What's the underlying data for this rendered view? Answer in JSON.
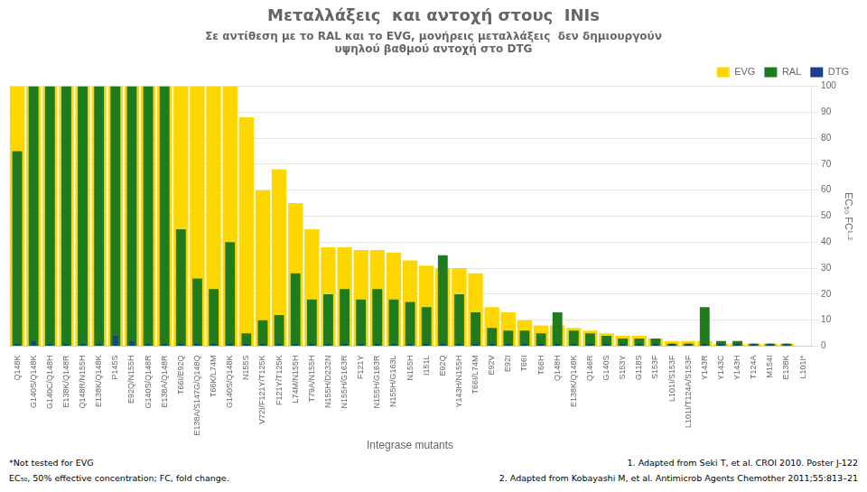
{
  "chart_data": {
    "type": "bar",
    "title": "Μεταλλάξεις  και αντοχή στους  INIs",
    "subtitle": [
      "Σε αντίθεση με το RAL και το EVG, μονήρεις μεταλλάξεις  δεν δημιουργούν",
      "υψηλού βαθμού αντοχή στο DTG"
    ],
    "x_label": "Integrase mutants",
    "y_label": "EC₅₀ FC¹·²",
    "categories": [
      "Q148K",
      "G140S/Q148K",
      "G140C/Q148H",
      "E138K/Q148R",
      "Q148R/N155H",
      "E138K/Q148K",
      "P145S",
      "E92Q/N155H",
      "G140S/Q148R",
      "E138A/Q148R",
      "T66I/E92Q",
      "E138A/S147G/Q148Q",
      "T66K/L74M",
      "G140S/Q148K",
      "N155S",
      "V72I/F121Y/T125K",
      "F121Y/T125K",
      "L74M/N155H",
      "T79A/N155H",
      "N155H/D232N",
      "N155H/G163R",
      "F121Y",
      "N155H/G163R",
      "N155H/G163L",
      "N155H",
      "I151L",
      "E92Q",
      "Y143H/N155H",
      "T66I/L74M",
      "E92V",
      "E92I",
      "T66I",
      "T66H",
      "Q148H",
      "E138K/Q148K",
      "Q146R",
      "G140S",
      "S153Y",
      "G118S",
      "S153F",
      "L101I/S153F",
      "L101I/T124A/S153F",
      "Y143R",
      "Y143C",
      "Y143H",
      "T124A",
      "M154I",
      "E138K",
      "L101I*"
    ],
    "series": [
      {
        "name": "EVG",
        "color": "#FFD700",
        "values": [
          100,
          100,
          100,
          100,
          100,
          100,
          100,
          100,
          100,
          100,
          100,
          100,
          100,
          100,
          88,
          60,
          68,
          55,
          45,
          38,
          38,
          37,
          37,
          36,
          33,
          31,
          30,
          30,
          28,
          15,
          13,
          10,
          8,
          8,
          7,
          6,
          5,
          4,
          4,
          3,
          2,
          2,
          2,
          1,
          1,
          1,
          1,
          1,
          0
        ]
      },
      {
        "name": "RAL",
        "color": "#1E7B1E",
        "values": [
          75,
          100,
          100,
          100,
          100,
          100,
          100,
          100,
          100,
          100,
          45,
          26,
          22,
          40,
          5,
          10,
          12,
          28,
          18,
          20,
          22,
          18,
          22,
          18,
          17,
          15,
          35,
          20,
          13,
          7,
          6,
          6,
          5,
          13,
          6,
          5,
          4,
          3,
          3,
          3,
          1,
          1,
          15,
          2,
          2,
          1,
          1,
          1,
          0
        ]
      },
      {
        "name": "DTG",
        "color": "#1C3F8F",
        "values": [
          1,
          2,
          1,
          1,
          1,
          1,
          4,
          2,
          1,
          1,
          1,
          1,
          1,
          1,
          1,
          1,
          1,
          1,
          1,
          1,
          1,
          1,
          1,
          1,
          1,
          1,
          1,
          1,
          1,
          1,
          1,
          1,
          1,
          1,
          1,
          1,
          1,
          1,
          1,
          1,
          1,
          1,
          1,
          1,
          1,
          1,
          1,
          1,
          0
        ]
      }
    ],
    "ylim": [
      0,
      100
    ],
    "yticks": [
      0,
      10,
      20,
      30,
      40,
      50,
      60,
      70,
      80,
      90,
      100
    ],
    "grid": true,
    "legend": "upper right",
    "footnotes": [
      "*Not tested for EVG",
      "EC₅₀, 50% effective concentration; FC, fold change.",
      "1. Adapted from Seki T, et al. CROI 2010. Poster J-122",
      "2. Adapted from Kobayashi M, et al. Antimicrob Agents Chemother 2011;55:813–21"
    ]
  }
}
